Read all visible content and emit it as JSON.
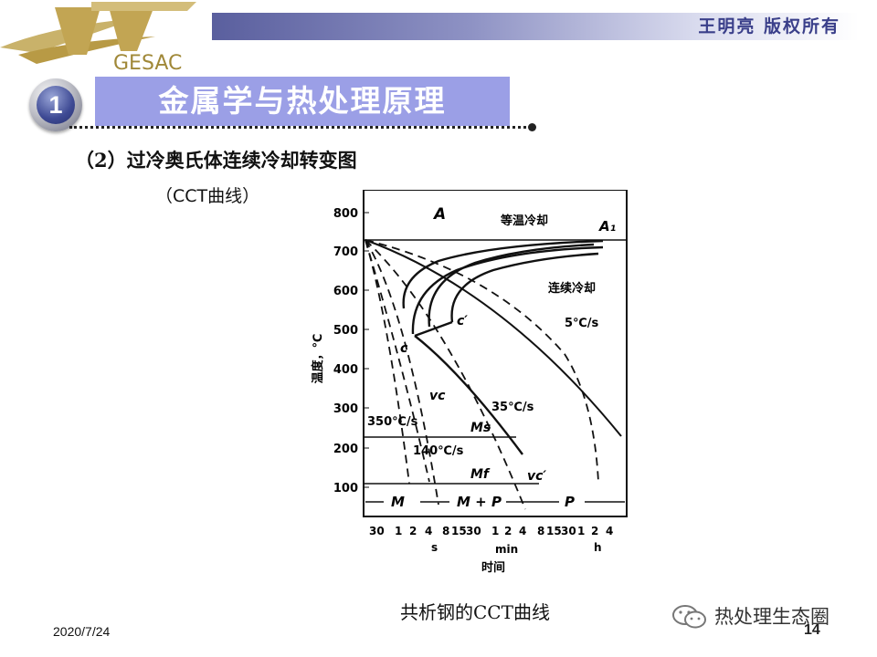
{
  "header": {
    "logo_text": "GESAC",
    "copyright": "王明亮 版权所有"
  },
  "section": {
    "number": "1",
    "title": "金属学与热处理原理"
  },
  "content": {
    "subtitle": "（2）过冷奥氏体连续冷却转变图",
    "subtitle2": "（CCT曲线）"
  },
  "chart_data": {
    "type": "diagram",
    "ylabel": "温度，℃",
    "xlabel": "时间",
    "yticks": [
      "800",
      "700",
      "600",
      "500",
      "400",
      "300",
      "200",
      "100"
    ],
    "xticks": [
      "30",
      "1",
      "2",
      "4",
      "8",
      "15",
      "30",
      "1",
      "2",
      "4",
      "8",
      "15",
      "30",
      "1",
      "2",
      "4"
    ],
    "x_units": [
      "s",
      "min",
      "h"
    ],
    "regions": [
      "A",
      "M",
      "M + P",
      "P"
    ],
    "labels": {
      "isothermal": "等温冷却",
      "continuous": "连续冷却",
      "a1": "A₁",
      "c": "c",
      "c_prime": "c′",
      "ms": "Ms",
      "mf": "Mf",
      "vc": "vc",
      "vc_prime": "vc′"
    },
    "cooling_rates": [
      "350℃/s",
      "140℃/s",
      "35℃/s",
      "5℃/s"
    ]
  },
  "footer": {
    "caption": "共析钢的CCT曲线",
    "date": "2020/7/24",
    "watermark": "热处理生态圈",
    "page": "14"
  }
}
